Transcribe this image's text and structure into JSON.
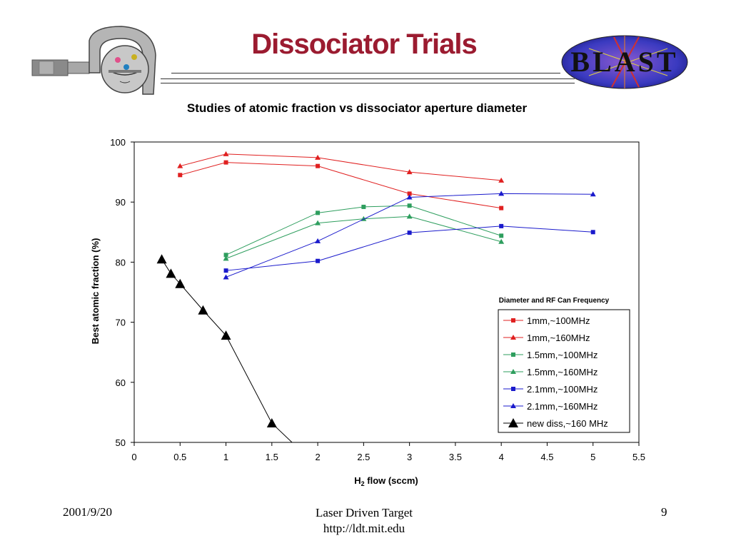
{
  "slide": {
    "title": "Dissociator Trials",
    "logo_right_text": "BLAST",
    "footer_date": "2001/9/20",
    "footer_center_line1": "Laser Driven Target",
    "footer_center_line2": "http://ldt.mit.edu",
    "page_number": "9"
  },
  "chart_data": {
    "type": "line",
    "title": "Studies of atomic fraction vs dissociator aperture diameter",
    "xlabel_main": "H",
    "xlabel_sub": "2",
    "xlabel_rest": " flow (sccm)",
    "ylabel": "Best atomic fraction (%)",
    "xlim": [
      0,
      5.5
    ],
    "ylim": [
      50,
      100
    ],
    "xticks": [
      "0",
      "0.5",
      "1",
      "1.5",
      "2",
      "2.5",
      "3",
      "3.5",
      "4",
      "4.5",
      "5",
      "5.5"
    ],
    "yticks": [
      "50",
      "60",
      "70",
      "80",
      "90",
      "100"
    ],
    "grid": false,
    "legend_title": "Diameter and RF Can Frequency",
    "legend_position": "right",
    "series": [
      {
        "name": "1mm,~100MHz",
        "color": "#e02020",
        "marker": "square",
        "x": [
          0.5,
          1,
          2,
          3,
          4
        ],
        "y": [
          94.5,
          96.6,
          96.0,
          91.4,
          89.0
        ]
      },
      {
        "name": "1mm,~160MHz",
        "color": "#e02020",
        "marker": "triangle",
        "x": [
          0.5,
          1,
          2,
          3,
          4
        ],
        "y": [
          96.0,
          98.0,
          97.4,
          95.0,
          93.6
        ]
      },
      {
        "name": "1.5mm,~100MHz",
        "color": "#2e9e5e",
        "marker": "square",
        "x": [
          1,
          2,
          2.5,
          3,
          4
        ],
        "y": [
          81.2,
          88.2,
          89.2,
          89.4,
          84.4
        ]
      },
      {
        "name": "1.5mm,~160MHz",
        "color": "#2e9e5e",
        "marker": "triangle",
        "x": [
          1,
          2,
          2.5,
          3,
          4
        ],
        "y": [
          80.6,
          86.5,
          87.2,
          87.6,
          83.4
        ]
      },
      {
        "name": "2.1mm,~100MHz",
        "color": "#1a1acc",
        "marker": "square",
        "x": [
          1,
          2,
          3,
          4,
          5
        ],
        "y": [
          78.6,
          80.2,
          84.9,
          86.0,
          85.0
        ]
      },
      {
        "name": "2.1mm,~160MHz",
        "color": "#1a1acc",
        "marker": "triangle",
        "x": [
          1,
          2,
          3,
          4,
          5
        ],
        "y": [
          77.5,
          83.5,
          90.8,
          91.4,
          91.3
        ]
      },
      {
        "name": "new diss,~160 MHz",
        "color": "#000000",
        "marker": "big-triangle",
        "x": [
          0.3,
          0.4,
          0.5,
          0.75,
          1,
          1.5,
          1.72
        ],
        "y": [
          80.5,
          78.1,
          76.4,
          72.0,
          67.8,
          53.2,
          50.0
        ],
        "marker_count": 6
      }
    ]
  }
}
